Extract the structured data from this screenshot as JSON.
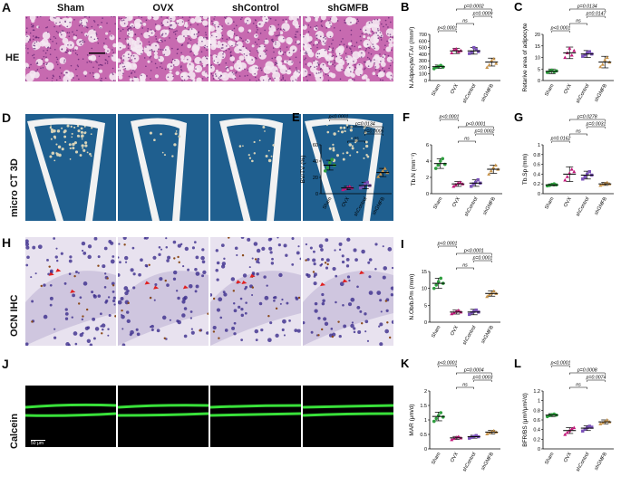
{
  "groups": [
    "Sham",
    "OVX",
    "shControl",
    "shGMFB"
  ],
  "colors": {
    "sham": "#2e9e3e",
    "ovx": "#c2187a",
    "shcontrol": "#7b52b8",
    "shgmfb": "#c8944a",
    "calcein": "#39e03a"
  },
  "panels": {
    "A": {
      "letter": "A",
      "label": "HE"
    },
    "D": {
      "letter": "D",
      "label": "micro CT 3D"
    },
    "H": {
      "letter": "H",
      "label": "OCN IHC"
    },
    "J": {
      "letter": "J",
      "label": "Calcein",
      "scale": "50 μm"
    }
  },
  "charts": {
    "B": {
      "letter": "B",
      "ylabel": "N.Adpocyte/T.Ar (/mm²)",
      "ylim": [
        0,
        700
      ],
      "ticks": [
        0,
        100,
        200,
        300,
        400,
        500,
        600,
        700
      ],
      "means": [
        210,
        450,
        450,
        280
      ],
      "sd": [
        25,
        40,
        50,
        60
      ],
      "points": [
        [
          180,
          200,
          215,
          230,
          205
        ],
        [
          420,
          470,
          480,
          440,
          455
        ],
        [
          410,
          430,
          500,
          470,
          440
        ],
        [
          200,
          240,
          300,
          330,
          260
        ]
      ],
      "sig": [
        {
          "a": 0,
          "b": 1,
          "text": "p<0.0001",
          "level": 0
        },
        {
          "a": 1,
          "b": 2,
          "text": "ns",
          "level": 1
        },
        {
          "a": 2,
          "b": 3,
          "text": "p=0.0009",
          "level": 2
        },
        {
          "a": 1,
          "b": 3,
          "text": "p=0.0002",
          "level": 3
        }
      ]
    },
    "C": {
      "letter": "C",
      "ylabel": "Retarive area of adipocyte",
      "ylim": [
        0,
        20
      ],
      "ticks": [
        0,
        5,
        10,
        15,
        20
      ],
      "means": [
        4,
        12,
        11.5,
        8
      ],
      "sd": [
        1,
        2.5,
        1.5,
        2.5
      ],
      "points": [
        [
          3.5,
          4,
          4.5,
          3.8,
          4.2
        ],
        [
          10,
          12,
          14,
          11,
          13
        ],
        [
          10.5,
          11,
          12,
          12.5,
          11.5
        ],
        [
          6,
          7,
          9,
          10,
          8
        ]
      ],
      "sig": [
        {
          "a": 0,
          "b": 1,
          "text": "p<0.0001",
          "level": 0
        },
        {
          "a": 1,
          "b": 2,
          "text": "ns",
          "level": 1
        },
        {
          "a": 2,
          "b": 3,
          "text": "p=0.0147",
          "level": 2
        },
        {
          "a": 1,
          "b": 3,
          "text": "p=0.0134",
          "level": 3
        }
      ]
    },
    "E": {
      "letter": "E",
      "ylabel": "BV/TV (%)",
      "ylim": [
        0,
        60
      ],
      "ticks": [
        0,
        20,
        40,
        60
      ],
      "means": [
        35,
        7,
        10,
        26
      ],
      "sd": [
        6,
        2,
        4,
        5
      ],
      "points": [
        [
          28,
          32,
          38,
          42,
          35
        ],
        [
          5,
          6,
          8,
          9,
          7
        ],
        [
          7,
          9,
          12,
          14,
          10
        ],
        [
          21,
          24,
          28,
          31,
          26
        ]
      ],
      "sig": [
        {
          "a": 1,
          "b": 2,
          "text": "ns",
          "level": 0
        },
        {
          "a": 2,
          "b": 3,
          "text": "p=0.0006",
          "level": 1
        },
        {
          "a": 1,
          "b": 3,
          "text": "p=0.0134",
          "level": 2
        },
        {
          "a": 0,
          "b": 1,
          "text": "p<0.0001",
          "level": 3
        }
      ]
    },
    "F": {
      "letter": "F",
      "ylabel": "Tb.N (mm⁻¹)",
      "ylim": [
        0,
        6
      ],
      "ticks": [
        0,
        2,
        4,
        6
      ],
      "means": [
        3.7,
        1.2,
        1.3,
        3.0
      ],
      "sd": [
        0.6,
        0.3,
        0.4,
        0.5
      ],
      "points": [
        [
          3.1,
          3.5,
          4.0,
          4.3,
          3.6
        ],
        [
          0.9,
          1.1,
          1.3,
          1.4,
          1.2
        ],
        [
          0.9,
          1.2,
          1.4,
          1.7,
          1.3
        ],
        [
          2.4,
          2.8,
          3.2,
          3.5,
          3.0
        ]
      ],
      "sig": [
        {
          "a": 1,
          "b": 2,
          "text": "ns",
          "level": 0
        },
        {
          "a": 2,
          "b": 3,
          "text": "p=0.0002",
          "level": 1
        },
        {
          "a": 1,
          "b": 3,
          "text": "p<0.0001",
          "level": 2
        },
        {
          "a": 0,
          "b": 1,
          "text": "p<0.0001",
          "level": 3
        }
      ]
    },
    "G": {
      "letter": "G",
      "ylabel": "Tb.Sp (mm)",
      "ylim": [
        0,
        1
      ],
      "ticks": [
        0,
        0.2,
        0.4,
        0.6,
        0.8,
        1.0
      ],
      "means": [
        0.18,
        0.4,
        0.38,
        0.2
      ],
      "sd": [
        0.02,
        0.15,
        0.08,
        0.03
      ],
      "points": [
        [
          0.16,
          0.17,
          0.19,
          0.2,
          0.18
        ],
        [
          0.28,
          0.35,
          0.42,
          0.5,
          0.45
        ],
        [
          0.3,
          0.34,
          0.4,
          0.45,
          0.38
        ],
        [
          0.17,
          0.19,
          0.21,
          0.23,
          0.2
        ]
      ],
      "sig": [
        {
          "a": 0,
          "b": 1,
          "text": "p=0.0162",
          "level": 0
        },
        {
          "a": 1,
          "b": 2,
          "text": "ns",
          "level": 1
        },
        {
          "a": 2,
          "b": 3,
          "text": "p=0.0031",
          "level": 2
        },
        {
          "a": 1,
          "b": 3,
          "text": "p=0.0278",
          "level": 3
        }
      ]
    },
    "I": {
      "letter": "I",
      "ylabel": "N.Ob/b.Pm (/mm)",
      "ylim": [
        0,
        15
      ],
      "ticks": [
        0,
        5,
        10,
        15
      ],
      "means": [
        11.5,
        3,
        3,
        8.5
      ],
      "sd": [
        1.5,
        0.6,
        0.8,
        0.8
      ],
      "points": [
        [
          10,
          11,
          12,
          13,
          11.5
        ],
        [
          2.5,
          2.8,
          3.2,
          3.5,
          3
        ],
        [
          2.3,
          2.8,
          3.2,
          3.6,
          3
        ],
        [
          7.6,
          8.2,
          8.6,
          9.2,
          8.5
        ]
      ],
      "sig": [
        {
          "a": 1,
          "b": 2,
          "text": "ns",
          "level": 0
        },
        {
          "a": 2,
          "b": 3,
          "text": "p=0.0001",
          "level": 1
        },
        {
          "a": 1,
          "b": 3,
          "text": "p<0.0001",
          "level": 2
        },
        {
          "a": 0,
          "b": 1,
          "text": "p<0.0001",
          "level": 3
        }
      ]
    },
    "K": {
      "letter": "K",
      "ylabel": "MAR (μm/d)",
      "ylim": [
        0,
        2.0
      ],
      "ticks": [
        0,
        0.5,
        1.0,
        1.5,
        2.0
      ],
      "means": [
        1.12,
        0.38,
        0.42,
        0.58
      ],
      "sd": [
        0.15,
        0.05,
        0.05,
        0.06
      ],
      "points": [
        [
          0.95,
          1.05,
          1.15,
          1.25,
          1.1
        ],
        [
          0.32,
          0.36,
          0.4,
          0.42,
          0.38
        ],
        [
          0.37,
          0.4,
          0.43,
          0.46,
          0.42
        ],
        [
          0.52,
          0.56,
          0.6,
          0.63,
          0.58
        ]
      ],
      "sig": [
        {
          "a": 1,
          "b": 2,
          "text": "ns",
          "level": 0
        },
        {
          "a": 2,
          "b": 3,
          "text": "p=0.0003",
          "level": 1
        },
        {
          "a": 1,
          "b": 3,
          "text": "p=0.0004",
          "level": 2
        },
        {
          "a": 0,
          "b": 1,
          "text": "p<0.0001",
          "level": 3
        }
      ]
    },
    "L": {
      "letter": "L",
      "ylabel": "BFR/BS (μm³/μm²/d)",
      "ylim": [
        0,
        1.2
      ],
      "ticks": [
        0,
        0.2,
        0.4,
        0.6,
        0.8,
        1.0,
        1.2
      ],
      "means": [
        0.7,
        0.38,
        0.43,
        0.56
      ],
      "sd": [
        0.03,
        0.06,
        0.05,
        0.04
      ],
      "points": [
        [
          0.67,
          0.69,
          0.71,
          0.72,
          0.7
        ],
        [
          0.3,
          0.34,
          0.38,
          0.42,
          0.44
        ],
        [
          0.37,
          0.41,
          0.44,
          0.47,
          0.45
        ],
        [
          0.52,
          0.54,
          0.57,
          0.6,
          0.56
        ]
      ],
      "sig": [
        {
          "a": 1,
          "b": 2,
          "text": "ns",
          "level": 0
        },
        {
          "a": 2,
          "b": 3,
          "text": "p=0.0074",
          "level": 1
        },
        {
          "a": 1,
          "b": 3,
          "text": "p=0.0008",
          "level": 2
        },
        {
          "a": 0,
          "b": 1,
          "text": "p<0.0001",
          "level": 3
        }
      ]
    }
  }
}
